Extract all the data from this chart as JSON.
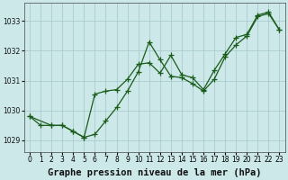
{
  "title": "Graphe pression niveau de la mer (hPa)",
  "bg_color": "#cce8e8",
  "grid_color": "#aacccc",
  "line_color": "#1a5c1a",
  "x_labels": [
    "0",
    "1",
    "2",
    "3",
    "4",
    "5",
    "6",
    "7",
    "8",
    "9",
    "10",
    "11",
    "12",
    "13",
    "14",
    "15",
    "16",
    "17",
    "18",
    "19",
    "20",
    "21",
    "22",
    "23"
  ],
  "y_ticks": [
    1029,
    1030,
    1031,
    1032,
    1033
  ],
  "ylim": [
    1028.6,
    1033.6
  ],
  "xlim": [
    -0.5,
    23.5
  ],
  "series1_x": [
    0,
    1,
    2,
    3,
    4,
    5,
    6,
    7,
    8,
    9,
    10,
    11,
    12,
    13,
    14,
    15,
    16,
    17,
    18,
    19,
    20,
    21,
    22,
    23
  ],
  "series1_y": [
    1029.8,
    1029.5,
    1029.5,
    1029.5,
    1029.3,
    1029.1,
    1029.2,
    1029.65,
    1030.1,
    1030.65,
    1031.3,
    1032.3,
    1031.7,
    1031.15,
    1031.1,
    1030.9,
    1030.65,
    1031.05,
    1031.8,
    1032.2,
    1032.5,
    1033.15,
    1033.25,
    1032.7
  ],
  "series2_x": [
    0,
    2,
    3,
    4,
    5,
    6,
    7,
    8,
    9,
    10,
    11,
    12,
    13,
    14,
    15,
    16,
    17,
    18,
    19,
    20,
    21,
    22,
    23
  ],
  "series2_y": [
    1029.8,
    1029.5,
    1029.5,
    1029.3,
    1029.1,
    1030.55,
    1030.65,
    1030.7,
    1031.05,
    1031.55,
    1031.6,
    1031.25,
    1031.85,
    1031.2,
    1031.1,
    1030.7,
    1031.35,
    1031.9,
    1032.45,
    1032.55,
    1033.2,
    1033.3,
    1032.7
  ],
  "marker_size": 4,
  "linewidth": 0.9,
  "title_fontsize": 7.5,
  "tick_fontsize": 5.5
}
